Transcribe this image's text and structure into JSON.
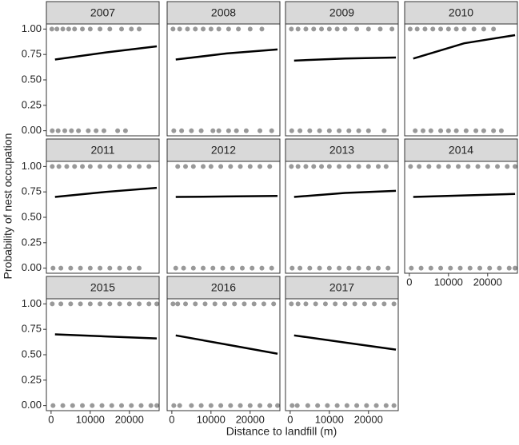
{
  "chart_data": {
    "type": "scatter",
    "xlabel": "Distance to landfill (m)",
    "ylabel": "Probability of nest occupation",
    "xlim": [
      -1200,
      27600
    ],
    "ylim": [
      -0.05,
      1.05
    ],
    "xticks": [
      0,
      10000,
      20000
    ],
    "yticks": [
      {
        "value": 0,
        "label": "0.00"
      },
      {
        "value": 0.25,
        "label": "0.25"
      },
      {
        "value": 0.5,
        "label": "0.50"
      },
      {
        "value": 0.75,
        "label": "0.75"
      },
      {
        "value": 1,
        "label": "1.00"
      }
    ],
    "point_color": "#000000",
    "curve_color": "#000000",
    "strip_color": "#d9d9d9",
    "panels": [
      {
        "title": "2007",
        "points": {
          "x": [
            200,
            1500,
            3000,
            4500,
            6000,
            8000,
            10000,
            12500,
            15000,
            18000,
            20500,
            22500,
            300,
            1800,
            3500,
            5200,
            7000,
            9500,
            11500,
            13500,
            17000,
            19000
          ],
          "y": [
            1,
            1,
            1,
            1,
            1,
            1,
            1,
            1,
            1,
            1,
            1,
            1,
            0,
            0,
            0,
            0,
            0,
            0,
            0,
            0,
            0,
            0
          ]
        },
        "curve": {
          "x": [
            1000,
            14000,
            27000
          ],
          "y": [
            0.7,
            0.77,
            0.83
          ]
        }
      },
      {
        "title": "2008",
        "points": {
          "x": [
            300,
            2000,
            4000,
            6000,
            8000,
            10000,
            12000,
            14500,
            17000,
            20000,
            23000,
            500,
            2500,
            5000,
            7500,
            10500,
            12000,
            14500,
            16500,
            19000,
            22500,
            25500
          ],
          "y": [
            1,
            1,
            1,
            1,
            1,
            1,
            1,
            1,
            1,
            1,
            1,
            0,
            0,
            0,
            0,
            0,
            0,
            0,
            0,
            0,
            0,
            0
          ]
        },
        "curve": {
          "x": [
            1000,
            14000,
            27000
          ],
          "y": [
            0.7,
            0.76,
            0.8
          ]
        }
      },
      {
        "title": "2009",
        "points": {
          "x": [
            300,
            2000,
            4000,
            6000,
            8000,
            10000,
            12000,
            14000,
            17000,
            20000,
            23000,
            26000,
            400,
            2500,
            5000,
            7500,
            10000,
            12500,
            15000,
            17500,
            20000,
            24000
          ],
          "y": [
            1,
            1,
            1,
            1,
            1,
            1,
            1,
            1,
            1,
            1,
            1,
            1,
            0,
            0,
            0,
            0,
            0,
            0,
            0,
            0,
            0,
            0
          ]
        },
        "curve": {
          "x": [
            1000,
            14000,
            27000
          ],
          "y": [
            0.69,
            0.71,
            0.72
          ]
        }
      },
      {
        "title": "2010",
        "points": {
          "x": [
            200,
            2000,
            4000,
            6000,
            8000,
            10000,
            12000,
            14000,
            16500,
            19000,
            21500,
            1500,
            3500,
            5500,
            8000,
            10000,
            12000,
            14500,
            17000,
            19000,
            21500,
            23500
          ],
          "y": [
            1,
            1,
            1,
            1,
            1,
            1,
            1,
            1,
            1,
            1,
            1,
            0,
            0,
            0,
            0,
            0,
            0,
            0,
            0,
            0,
            0,
            0
          ]
        },
        "curve": {
          "x": [
            1000,
            14000,
            27000
          ],
          "y": [
            0.71,
            0.86,
            0.94
          ]
        }
      },
      {
        "title": "2011",
        "points": {
          "x": [
            300,
            2000,
            4000,
            6000,
            8000,
            10000,
            12500,
            15000,
            17500,
            20000,
            22500,
            25000,
            500,
            2500,
            5000,
            7500,
            10000,
            12500,
            15000,
            17500,
            20000,
            22500
          ],
          "y": [
            1,
            1,
            1,
            1,
            1,
            1,
            1,
            1,
            1,
            1,
            1,
            1,
            0,
            0,
            0,
            0,
            0,
            0,
            0,
            0,
            0,
            0
          ]
        },
        "curve": {
          "x": [
            1000,
            14000,
            27000
          ],
          "y": [
            0.7,
            0.75,
            0.79
          ]
        }
      },
      {
        "title": "2012",
        "points": {
          "x": [
            1500,
            3500,
            5500,
            8000,
            10000,
            12500,
            15000,
            17500,
            20000,
            22500,
            25000,
            1000,
            3000,
            5500,
            8000,
            10500,
            13000,
            15500,
            18000,
            20500,
            23000,
            25500
          ],
          "y": [
            1,
            1,
            1,
            1,
            1,
            1,
            1,
            1,
            1,
            1,
            1,
            0,
            0,
            0,
            0,
            0,
            0,
            0,
            0,
            0,
            0,
            0
          ]
        },
        "curve": {
          "x": [
            1000,
            14000,
            27000
          ],
          "y": [
            0.7,
            0.705,
            0.71
          ]
        }
      },
      {
        "title": "2013",
        "points": {
          "x": [
            300,
            2000,
            4000,
            6000,
            8000,
            10000,
            12500,
            15000,
            17500,
            20000,
            22500,
            24500,
            500,
            2500,
            5000,
            7500,
            10000,
            12500,
            15000,
            17500,
            20000,
            22500,
            25000
          ],
          "y": [
            1,
            1,
            1,
            1,
            1,
            1,
            1,
            1,
            1,
            1,
            1,
            1,
            0,
            0,
            0,
            0,
            0,
            0,
            0,
            0,
            0,
            0,
            0
          ]
        },
        "curve": {
          "x": [
            1000,
            14000,
            27000
          ],
          "y": [
            0.7,
            0.74,
            0.76
          ]
        }
      },
      {
        "title": "2014",
        "points": {
          "x": [
            300,
            2500,
            5000,
            7500,
            10000,
            12500,
            15000,
            17500,
            20000,
            22500,
            25000,
            27000,
            500,
            3000,
            5500,
            8000,
            10500,
            13000,
            15500,
            18000,
            20500,
            23000,
            25500,
            27000
          ],
          "y": [
            1,
            1,
            1,
            1,
            1,
            1,
            1,
            1,
            1,
            1,
            1,
            1,
            0,
            0,
            0,
            0,
            0,
            0,
            0,
            0,
            0,
            0,
            0,
            0
          ]
        },
        "curve": {
          "x": [
            1000,
            14000,
            27000
          ],
          "y": [
            0.7,
            0.715,
            0.73
          ]
        }
      },
      {
        "title": "2015",
        "points": {
          "x": [
            300,
            2500,
            5000,
            7500,
            10000,
            12500,
            15000,
            17500,
            20000,
            22500,
            25000,
            27000,
            500,
            3000,
            5500,
            8000,
            10500,
            13000,
            15500,
            18000,
            20500,
            23000,
            25500,
            27000
          ],
          "y": [
            1,
            1,
            1,
            1,
            1,
            1,
            1,
            1,
            1,
            1,
            1,
            1,
            0,
            0,
            0,
            0,
            0,
            0,
            0,
            0,
            0,
            0,
            0,
            0
          ]
        },
        "curve": {
          "x": [
            1000,
            14000,
            27000
          ],
          "y": [
            0.7,
            0.68,
            0.66
          ]
        }
      },
      {
        "title": "2016",
        "points": {
          "x": [
            300,
            1500,
            3500,
            6000,
            8500,
            11000,
            13500,
            16000,
            18500,
            21000,
            23500,
            26000,
            500,
            2000,
            5000,
            7500,
            10000,
            12500,
            15000,
            17500,
            20000,
            22500,
            25000,
            27000
          ],
          "y": [
            1,
            1,
            1,
            1,
            1,
            1,
            1,
            1,
            1,
            1,
            1,
            1,
            0,
            0,
            0,
            0,
            0,
            0,
            0,
            0,
            0,
            0,
            0,
            0
          ]
        },
        "curve": {
          "x": [
            1000,
            14000,
            27000
          ],
          "y": [
            0.69,
            0.6,
            0.51
          ]
        }
      },
      {
        "title": "2017",
        "points": {
          "x": [
            300,
            2000,
            4000,
            6500,
            9000,
            11500,
            14000,
            16500,
            19000,
            21500,
            24000,
            26500,
            500,
            1800,
            4500,
            7000,
            9500,
            12000,
            14500,
            17000,
            19500,
            22000,
            24500,
            26500
          ],
          "y": [
            1,
            1,
            1,
            1,
            1,
            1,
            1,
            1,
            1,
            1,
            1,
            1,
            0,
            0,
            0,
            0,
            0,
            0,
            0,
            0,
            0,
            0,
            0,
            0
          ]
        },
        "curve": {
          "x": [
            1000,
            14000,
            27000
          ],
          "y": [
            0.69,
            0.62,
            0.55
          ]
        }
      }
    ]
  }
}
